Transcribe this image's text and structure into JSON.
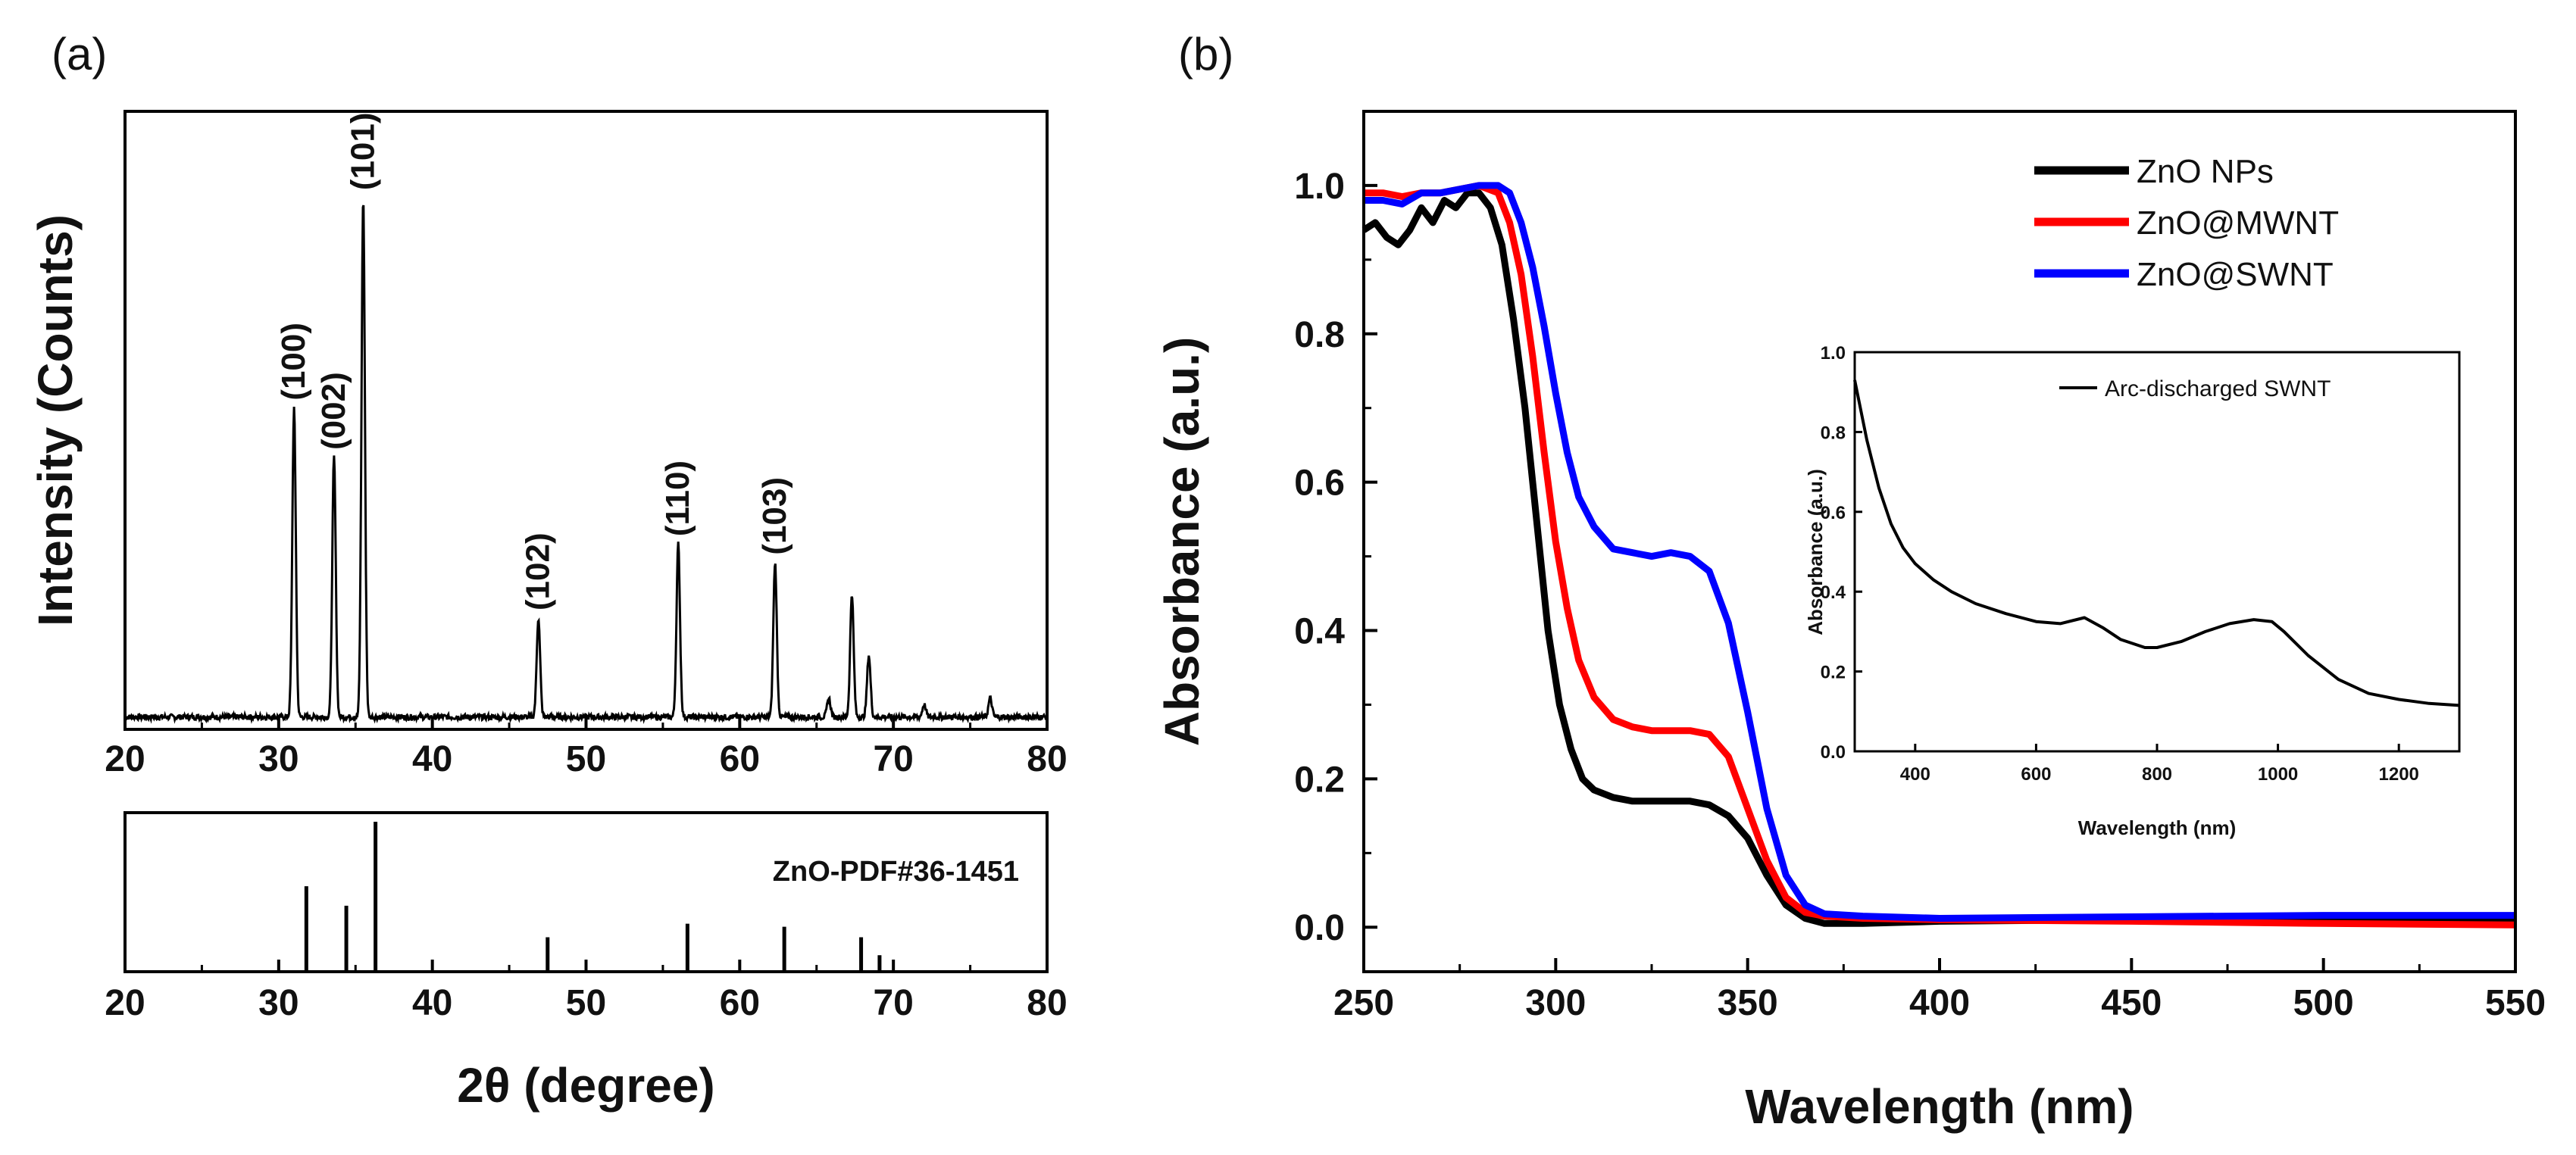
{
  "chart_data": [
    {
      "panel": "(a)",
      "type": "line",
      "subplot": "xrd_pattern",
      "xlabel": "2θ (degree)",
      "ylabel": "Intensity (Counts)",
      "xlim": [
        20,
        80
      ],
      "ylim": [
        0,
        100
      ],
      "xticks": [
        "20",
        "30",
        "40",
        "50",
        "60",
        "70",
        "80"
      ],
      "baseline": 2,
      "peaks": [
        {
          "x": 31.0,
          "height": 50,
          "label": "(100)"
        },
        {
          "x": 33.6,
          "height": 42,
          "label": "(002)"
        },
        {
          "x": 35.5,
          "height": 84,
          "label": "(101)"
        },
        {
          "x": 46.9,
          "height": 16,
          "label": "(102)"
        },
        {
          "x": 56.0,
          "height": 28,
          "label": "(110)"
        },
        {
          "x": 62.3,
          "height": 25,
          "label": "(103)"
        },
        {
          "x": 65.8,
          "height": 3,
          "label": ""
        },
        {
          "x": 67.3,
          "height": 20,
          "label": ""
        },
        {
          "x": 68.4,
          "height": 10,
          "label": ""
        },
        {
          "x": 72.0,
          "height": 2,
          "label": ""
        },
        {
          "x": 76.3,
          "height": 3,
          "label": ""
        }
      ]
    },
    {
      "panel": "(a)",
      "type": "bar",
      "subplot": "reference_pattern",
      "title": "ZnO-PDF#36-1451",
      "xlabel": "2θ (degree)",
      "xlim": [
        20,
        80
      ],
      "ylim": [
        0,
        100
      ],
      "xticks": [
        "20",
        "30",
        "40",
        "50",
        "60",
        "70",
        "80"
      ],
      "x": [
        31.8,
        34.4,
        36.3,
        47.5,
        56.6,
        62.9,
        67.9,
        69.1
      ],
      "values": [
        57,
        44,
        100,
        23,
        32,
        30,
        23,
        11
      ]
    },
    {
      "panel": "(b)",
      "type": "line",
      "xlabel": "Wavelength (nm)",
      "ylabel": "Absorbance (a.u.)",
      "xlim": [
        250,
        550
      ],
      "ylim": [
        -0.06,
        1.1
      ],
      "xticks": [
        "250",
        "300",
        "350",
        "400",
        "450",
        "500",
        "550"
      ],
      "yticks": [
        "0.0",
        "0.2",
        "0.4",
        "0.6",
        "0.8",
        "1.0"
      ],
      "legend_position": "top-right",
      "series": [
        {
          "name": "ZnO NPs",
          "color": "#000000",
          "x": [
            250,
            253,
            256,
            259,
            262,
            265,
            268,
            271,
            274,
            277,
            280,
            283,
            286,
            289,
            292,
            295,
            298,
            301,
            304,
            307,
            310,
            315,
            320,
            325,
            330,
            335,
            340,
            345,
            350,
            355,
            360,
            365,
            370,
            380,
            400,
            450,
            500,
            550
          ],
          "y": [
            0.94,
            0.95,
            0.93,
            0.92,
            0.94,
            0.97,
            0.95,
            0.98,
            0.97,
            0.99,
            0.99,
            0.97,
            0.92,
            0.82,
            0.7,
            0.55,
            0.4,
            0.3,
            0.24,
            0.2,
            0.185,
            0.175,
            0.17,
            0.17,
            0.17,
            0.17,
            0.165,
            0.15,
            0.12,
            0.07,
            0.03,
            0.012,
            0.005,
            0.005,
            0.008,
            0.01,
            0.012,
            0.012
          ]
        },
        {
          "name": "ZnO@MWNT",
          "color": "#ff0000",
          "x": [
            250,
            255,
            260,
            265,
            270,
            275,
            280,
            285,
            288,
            291,
            294,
            297,
            300,
            303,
            306,
            310,
            315,
            320,
            325,
            330,
            335,
            340,
            345,
            350,
            355,
            360,
            365,
            370,
            380,
            400,
            450,
            500,
            550
          ],
          "y": [
            0.99,
            0.99,
            0.985,
            0.99,
            0.99,
            0.995,
            1.0,
            0.99,
            0.95,
            0.88,
            0.77,
            0.64,
            0.52,
            0.43,
            0.36,
            0.31,
            0.28,
            0.27,
            0.265,
            0.265,
            0.265,
            0.26,
            0.23,
            0.16,
            0.09,
            0.04,
            0.02,
            0.015,
            0.012,
            0.01,
            0.008,
            0.005,
            0.003
          ]
        },
        {
          "name": "ZnO@SWNT",
          "color": "#0000ff",
          "x": [
            250,
            255,
            260,
            265,
            270,
            275,
            280,
            285,
            288,
            291,
            294,
            297,
            300,
            303,
            306,
            310,
            315,
            320,
            325,
            330,
            335,
            340,
            345,
            350,
            355,
            360,
            365,
            370,
            380,
            400,
            450,
            500,
            550
          ],
          "y": [
            0.98,
            0.98,
            0.975,
            0.99,
            0.99,
            0.995,
            1.0,
            1.0,
            0.99,
            0.95,
            0.89,
            0.81,
            0.72,
            0.64,
            0.58,
            0.54,
            0.51,
            0.505,
            0.5,
            0.505,
            0.5,
            0.48,
            0.41,
            0.29,
            0.16,
            0.07,
            0.03,
            0.018,
            0.015,
            0.012,
            0.014,
            0.016,
            0.016
          ]
        }
      ]
    },
    {
      "panel": "(b)",
      "type": "line",
      "subplot": "inset",
      "xlabel": "Wavelength (nm)",
      "ylabel": "Absorbance (a.u.)",
      "xlim": [
        300,
        1300
      ],
      "ylim": [
        0.0,
        1.0
      ],
      "xticks": [
        "400",
        "600",
        "800",
        "1000",
        "1200"
      ],
      "yticks": [
        "0.0",
        "0.2",
        "0.4",
        "0.6",
        "0.8",
        "1.0"
      ],
      "legend_position": "top-right",
      "series": [
        {
          "name": "Arc-discharged SWNT",
          "color": "#000000",
          "x": [
            300,
            320,
            340,
            360,
            380,
            400,
            430,
            460,
            500,
            550,
            600,
            640,
            680,
            710,
            740,
            780,
            800,
            840,
            880,
            920,
            960,
            990,
            1010,
            1050,
            1100,
            1150,
            1200,
            1250,
            1300
          ],
          "y": [
            0.93,
            0.78,
            0.66,
            0.57,
            0.51,
            0.47,
            0.43,
            0.4,
            0.37,
            0.345,
            0.325,
            0.32,
            0.335,
            0.31,
            0.28,
            0.26,
            0.26,
            0.275,
            0.3,
            0.32,
            0.33,
            0.325,
            0.3,
            0.24,
            0.18,
            0.145,
            0.13,
            0.12,
            0.115
          ]
        }
      ]
    }
  ],
  "panels": {
    "a": {
      "label": "(a)"
    },
    "b": {
      "label": "(b)"
    }
  }
}
